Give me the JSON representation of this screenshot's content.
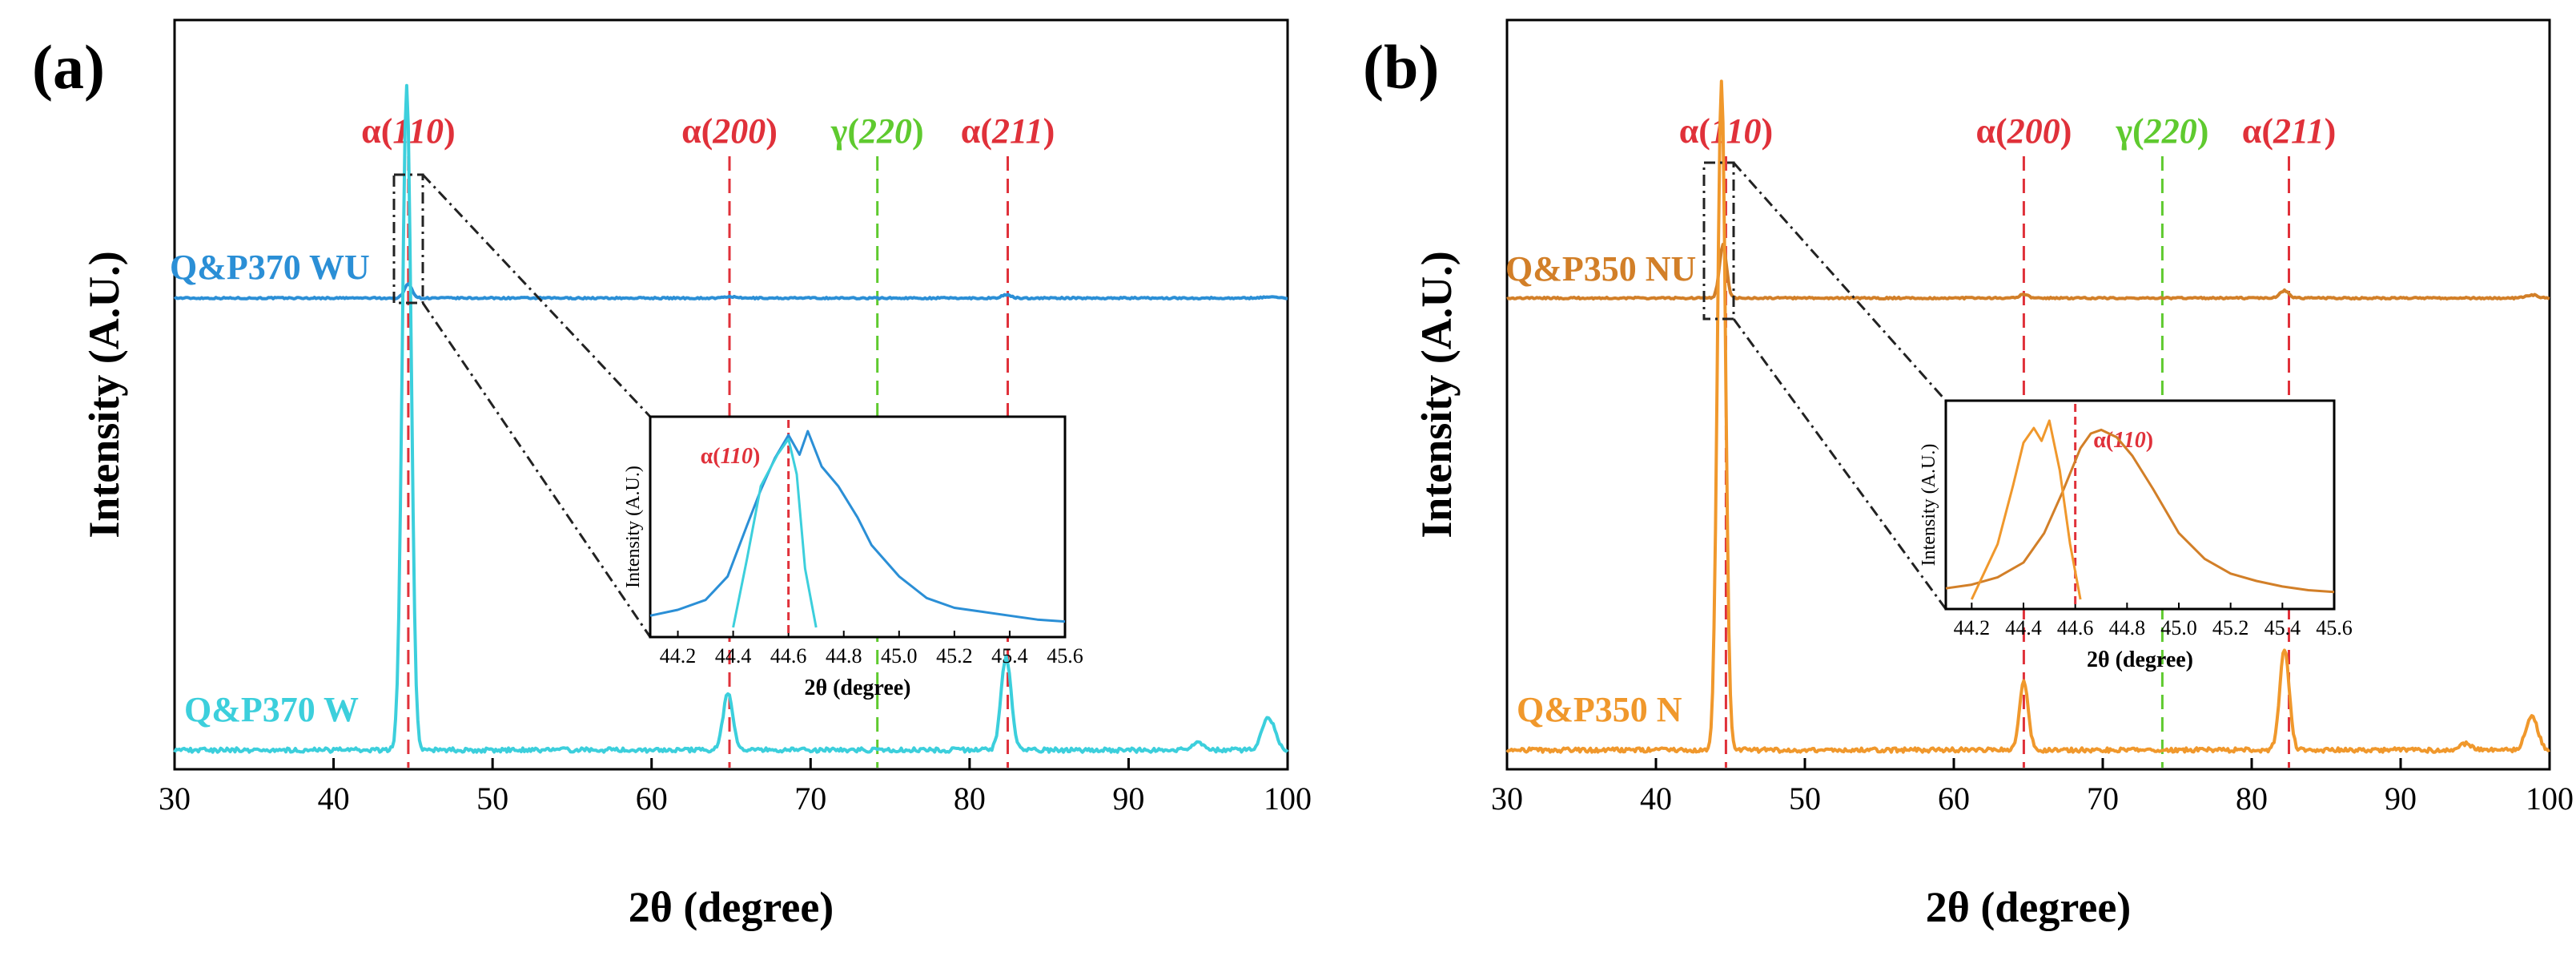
{
  "figure": {
    "colors": {
      "blue_top": "#2b8fd6",
      "blue_bottom": "#3ccfdc",
      "orange_top": "#d27f28",
      "orange_bottom": "#f0982c",
      "red": "#e0313a",
      "green": "#5fca2f",
      "axis": "#000000",
      "callout": "#222222"
    }
  },
  "chart_data": [
    {
      "type": "line",
      "panel_label": "(a)",
      "xlabel": "2θ (degree)",
      "ylabel": "Intensity (A.U.)",
      "xlim": [
        30,
        100
      ],
      "xticks": [
        30,
        40,
        50,
        60,
        70,
        80,
        90,
        100
      ],
      "series": [
        {
          "name": "Q&P370 WU",
          "color": "#2b8fd6",
          "baseline": 0.72,
          "scale": 0.052,
          "peaks": [
            [
              44.7,
              1.0,
              0.25
            ],
            [
              64.9,
              0.12,
              0.28
            ],
            [
              82.3,
              0.22,
              0.3
            ],
            [
              98.8,
              0.1,
              0.4
            ]
          ]
        },
        {
          "name": "Q&P370 W",
          "color": "#3ccfdc",
          "baseline": 0.0,
          "scale": 0.92,
          "peaks": [
            [
              44.6,
              1.0,
              0.28
            ],
            [
              64.8,
              0.085,
              0.3
            ],
            [
              82.3,
              0.14,
              0.32
            ],
            [
              98.8,
              0.05,
              0.4
            ],
            [
              94.4,
              0.01,
              0.4
            ]
          ]
        }
      ],
      "reflections": [
        {
          "label_greek": "α",
          "hkl": "110",
          "x": 44.7,
          "color": "#e0313a",
          "phase": "alpha"
        },
        {
          "label_greek": "α",
          "hkl": "200",
          "x": 64.9,
          "color": "#e0313a",
          "phase": "alpha"
        },
        {
          "label_greek": "γ",
          "hkl": "220",
          "x": 74.2,
          "color": "#5fca2f",
          "phase": "gamma"
        },
        {
          "label_greek": "α",
          "hkl": "211",
          "x": 82.4,
          "color": "#e0313a",
          "phase": "alpha"
        }
      ],
      "inset": {
        "xlabel": "2θ (degree)",
        "ylabel": "Intensity (A.U.)",
        "xlim": [
          44.1,
          45.6
        ],
        "xticks": [
          "44.2",
          "44.4",
          "44.6",
          "44.8",
          "45.0",
          "45.2",
          "45.4",
          "45.6"
        ],
        "marker": {
          "label_greek": "α",
          "hkl": "110",
          "x": 44.6
        },
        "series": [
          {
            "name": "Q&P370 WU",
            "color": "#2b8fd6",
            "points": [
              [
                44.1,
                0.06
              ],
              [
                44.2,
                0.09
              ],
              [
                44.3,
                0.14
              ],
              [
                44.38,
                0.26
              ],
              [
                44.45,
                0.52
              ],
              [
                44.5,
                0.7
              ],
              [
                44.55,
                0.86
              ],
              [
                44.6,
                0.98
              ],
              [
                44.64,
                0.88
              ],
              [
                44.67,
                1.0
              ],
              [
                44.72,
                0.82
              ],
              [
                44.78,
                0.72
              ],
              [
                44.85,
                0.56
              ],
              [
                44.9,
                0.42
              ],
              [
                45.0,
                0.26
              ],
              [
                45.1,
                0.15
              ],
              [
                45.2,
                0.1
              ],
              [
                45.3,
                0.08
              ],
              [
                45.4,
                0.06
              ],
              [
                45.5,
                0.04
              ],
              [
                45.6,
                0.03
              ]
            ]
          },
          {
            "name": "Q&P370 W",
            "color": "#3ccfdc",
            "points": [
              [
                44.4,
                0.0
              ],
              [
                44.45,
                0.35
              ],
              [
                44.5,
                0.72
              ],
              [
                44.56,
                0.88
              ],
              [
                44.6,
                0.96
              ],
              [
                44.63,
                0.78
              ],
              [
                44.66,
                0.3
              ],
              [
                44.7,
                0.0
              ]
            ]
          }
        ]
      }
    },
    {
      "type": "line",
      "panel_label": "(b)",
      "xlabel": "2θ (degree)",
      "ylabel": "Intensity (A.U.)",
      "xlim": [
        30,
        100
      ],
      "xticks": [
        30,
        40,
        50,
        60,
        70,
        80,
        90,
        100
      ],
      "series": [
        {
          "name": "Q&P350 NU",
          "color": "#d27f28",
          "baseline": 0.74,
          "scale": 0.2,
          "peaks": [
            [
              44.5,
              1.0,
              0.24
            ],
            [
              64.7,
              0.07,
              0.28
            ],
            [
              82.2,
              0.14,
              0.3
            ],
            [
              98.8,
              0.06,
              0.4
            ]
          ]
        },
        {
          "name": "Q&P350 N",
          "color": "#f0982c",
          "baseline": 0.0,
          "scale": 0.93,
          "peaks": [
            [
              44.4,
              1.0,
              0.27
            ],
            [
              64.7,
              0.1,
              0.3
            ],
            [
              82.2,
              0.15,
              0.32
            ],
            [
              98.8,
              0.05,
              0.4
            ],
            [
              94.4,
              0.01,
              0.4
            ]
          ]
        }
      ],
      "reflections": [
        {
          "label_greek": "α",
          "hkl": "110",
          "x": 44.7,
          "color": "#e0313a",
          "phase": "alpha"
        },
        {
          "label_greek": "α",
          "hkl": "200",
          "x": 64.7,
          "color": "#e0313a",
          "phase": "alpha"
        },
        {
          "label_greek": "γ",
          "hkl": "220",
          "x": 74.0,
          "color": "#5fca2f",
          "phase": "gamma"
        },
        {
          "label_greek": "α",
          "hkl": "211",
          "x": 82.5,
          "color": "#e0313a",
          "phase": "alpha"
        }
      ],
      "inset": {
        "xlabel": "2θ (degree)",
        "ylabel": "Intensity (A.U.)",
        "xlim": [
          44.1,
          45.6
        ],
        "xticks": [
          "44.2",
          "44.4",
          "44.6",
          "44.8",
          "45.0",
          "45.2",
          "45.4",
          "45.6"
        ],
        "marker": {
          "label_greek": "α",
          "hkl": "110",
          "x": 44.6
        },
        "series": [
          {
            "name": "Q&P350 NU",
            "color": "#d27f28",
            "points": [
              [
                44.1,
                0.06
              ],
              [
                44.2,
                0.08
              ],
              [
                44.3,
                0.12
              ],
              [
                44.4,
                0.2
              ],
              [
                44.48,
                0.36
              ],
              [
                44.55,
                0.58
              ],
              [
                44.62,
                0.82
              ],
              [
                44.66,
                0.9
              ],
              [
                44.7,
                0.92
              ],
              [
                44.76,
                0.88
              ],
              [
                44.82,
                0.78
              ],
              [
                44.9,
                0.6
              ],
              [
                45.0,
                0.36
              ],
              [
                45.1,
                0.22
              ],
              [
                45.2,
                0.14
              ],
              [
                45.3,
                0.1
              ],
              [
                45.4,
                0.07
              ],
              [
                45.5,
                0.05
              ],
              [
                45.6,
                0.04
              ]
            ]
          },
          {
            "name": "Q&P350 N",
            "color": "#f0982c",
            "points": [
              [
                44.2,
                0.0
              ],
              [
                44.3,
                0.3
              ],
              [
                44.36,
                0.62
              ],
              [
                44.4,
                0.85
              ],
              [
                44.44,
                0.93
              ],
              [
                44.47,
                0.86
              ],
              [
                44.5,
                0.97
              ],
              [
                44.54,
                0.7
              ],
              [
                44.58,
                0.3
              ],
              [
                44.62,
                0.0
              ]
            ]
          }
        ]
      }
    }
  ]
}
